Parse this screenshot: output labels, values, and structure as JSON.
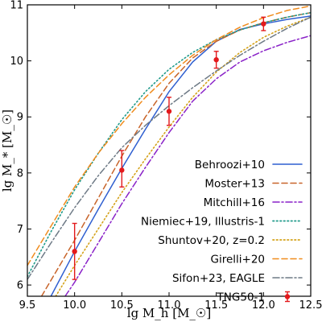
{
  "chart_data": {
    "type": "line",
    "xlabel": "lg M_h [M_☉]",
    "ylabel": "lg M_* [M_☉]",
    "xlim": [
      9.5,
      12.5
    ],
    "ylim": [
      5.8,
      11.0
    ],
    "x_ticks": [
      "9.5",
      "10.0",
      "10.5",
      "11.0",
      "11.5",
      "12.0",
      "12.5"
    ],
    "y_ticks": [
      "6",
      "7",
      "8",
      "9",
      "10",
      "11"
    ],
    "grid": false,
    "legend_position": "bottom-right",
    "series": [
      {
        "name": "Behroozi+10",
        "style": "solid",
        "color": "#2f5fd0",
        "x": [
          9.75,
          10.0,
          10.25,
          10.5,
          10.75,
          11.0,
          11.25,
          11.5,
          11.75,
          12.0,
          12.25,
          12.5
        ],
        "y": [
          5.8,
          6.6,
          7.35,
          8.08,
          8.78,
          9.45,
          9.98,
          10.35,
          10.56,
          10.66,
          10.74,
          10.8
        ]
      },
      {
        "name": "Moster+13",
        "style": "dash",
        "color": "#c8642a",
        "x": [
          9.65,
          10.0,
          10.25,
          10.5,
          10.75,
          11.0,
          11.25,
          11.5,
          11.75,
          12.0,
          12.25,
          12.5
        ],
        "y": [
          5.8,
          6.8,
          7.55,
          8.3,
          9.0,
          9.6,
          10.05,
          10.35,
          10.55,
          10.68,
          10.78,
          10.86
        ]
      },
      {
        "name": "Mitchill+16",
        "style": "dashdot",
        "color": "#8a22c8",
        "x": [
          9.9,
          10.0,
          10.25,
          10.5,
          10.75,
          11.0,
          11.25,
          11.5,
          11.75,
          12.0,
          12.25,
          12.5
        ],
        "y": [
          5.8,
          6.05,
          6.75,
          7.45,
          8.1,
          8.72,
          9.28,
          9.68,
          9.98,
          10.18,
          10.33,
          10.45
        ]
      },
      {
        "name": "Niemiec+19, Illustris-1",
        "style": "dot",
        "color": "#1f9a8a",
        "x": [
          9.5,
          9.75,
          10.0,
          10.25,
          10.5,
          10.75,
          11.0,
          11.25,
          11.5,
          11.75,
          12.0,
          12.25,
          12.5
        ],
        "y": [
          6.15,
          6.95,
          7.7,
          8.35,
          8.95,
          9.45,
          9.85,
          10.15,
          10.38,
          10.55,
          10.68,
          10.78,
          10.86
        ]
      },
      {
        "name": "Shuntov+20, z=0.2",
        "style": "dot",
        "color": "#d4a21a",
        "x": [
          9.8,
          10.0,
          10.25,
          10.5,
          10.75,
          11.0,
          11.25,
          11.5,
          11.75,
          12.0,
          12.25,
          12.5
        ],
        "y": [
          5.8,
          6.35,
          7.0,
          7.65,
          8.25,
          8.82,
          9.35,
          9.8,
          10.15,
          10.42,
          10.62,
          10.78
        ]
      },
      {
        "name": "Girelli+20",
        "style": "dash",
        "color": "#f08c1e",
        "x": [
          9.5,
          9.75,
          10.0,
          10.25,
          10.5,
          10.75,
          11.0,
          11.25,
          11.5,
          11.75,
          12.0,
          12.25,
          12.5
        ],
        "y": [
          6.35,
          7.05,
          7.75,
          8.35,
          8.88,
          9.35,
          9.75,
          10.1,
          10.38,
          10.6,
          10.77,
          10.9,
          10.98
        ]
      },
      {
        "name": "Sifon+23, EAGLE",
        "style": "dashdot",
        "color": "#6e7a86",
        "x": [
          9.5,
          9.75,
          10.0,
          10.25,
          10.5,
          10.75,
          11.0,
          11.25,
          11.5,
          11.75,
          12.0,
          12.25,
          12.5
        ],
        "y": [
          6.1,
          6.75,
          7.38,
          7.95,
          8.45,
          8.85,
          9.2,
          9.52,
          9.82,
          10.1,
          10.35,
          10.58,
          10.78
        ]
      }
    ],
    "points": {
      "name": "TNG50-1",
      "color": "#e3191c",
      "x": [
        10.0,
        10.5,
        11.0,
        11.5,
        12.0
      ],
      "y": [
        6.6,
        8.05,
        9.1,
        10.02,
        10.66
      ],
      "yerr_low": [
        0.5,
        0.3,
        0.25,
        0.15,
        0.12
      ],
      "yerr_high": [
        0.5,
        0.35,
        0.25,
        0.15,
        0.12
      ]
    }
  }
}
